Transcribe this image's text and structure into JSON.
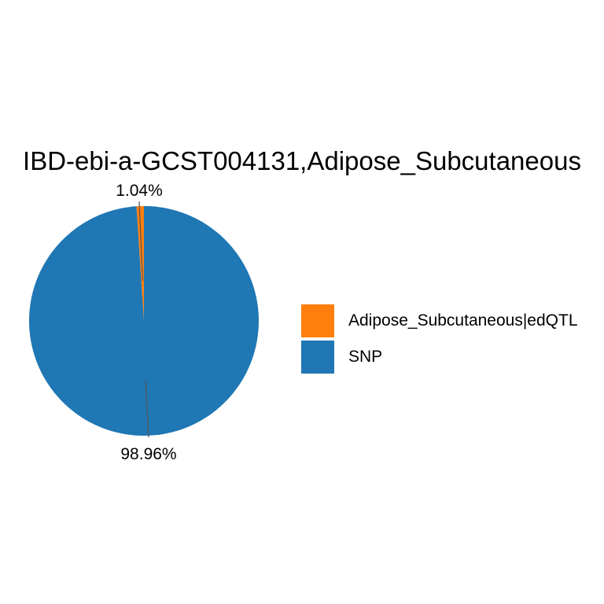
{
  "chart_data": {
    "type": "pie",
    "title": "IBD-ebi-a-GCST004131,Adipose_Subcutaneous",
    "slices": [
      {
        "label": "Adipose_Subcutaneous|edQTL",
        "value": 1.04,
        "percent_label": "1.04%",
        "color": "#ff7f0e"
      },
      {
        "label": "SNP",
        "value": 98.96,
        "percent_label": "98.96%",
        "color": "#1f77b4"
      }
    ],
    "legend_position": "right"
  }
}
